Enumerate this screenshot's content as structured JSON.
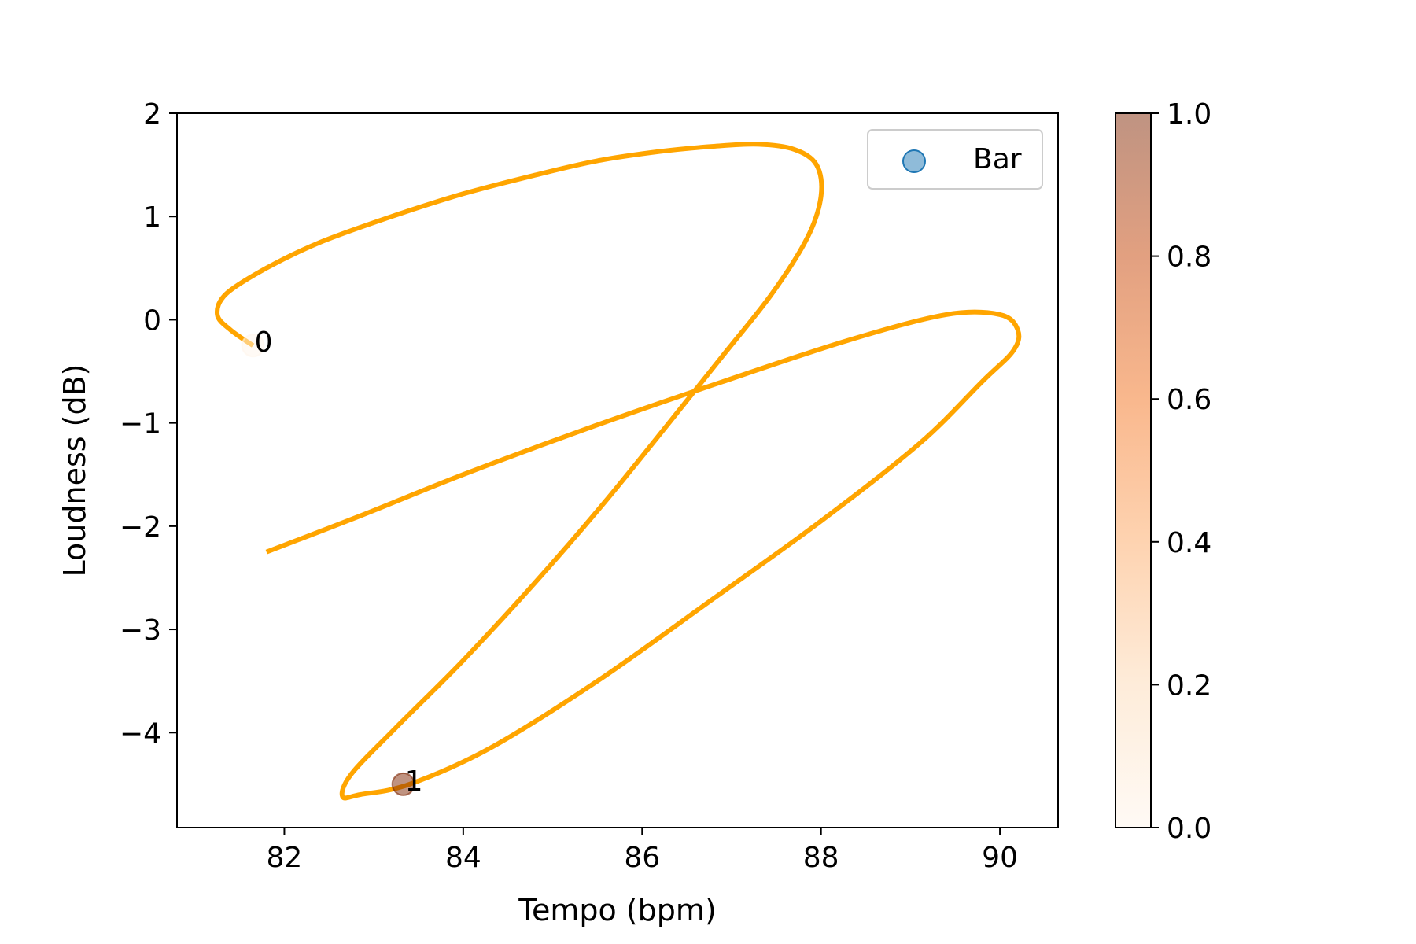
{
  "chart_data": {
    "type": "line",
    "title": "",
    "xlabel": "Tempo (bpm)",
    "ylabel": "Loudness (dB)",
    "xlim": [
      80.8,
      90.65
    ],
    "ylim": [
      -4.92,
      2.0
    ],
    "xticks": [
      82,
      84,
      86,
      88,
      90
    ],
    "xtick_labels": [
      "82",
      "84",
      "86",
      "88",
      "90"
    ],
    "yticks": [
      2,
      1,
      0,
      -1,
      -2,
      -3,
      -4
    ],
    "ytick_labels": [
      "2",
      "1",
      "0",
      "−1",
      "−2",
      "−3",
      "−4"
    ],
    "grid": false,
    "legend": {
      "location": "top-right",
      "entries": [
        "Bar"
      ]
    },
    "line_color": "#FFA500",
    "curve": {
      "name": "",
      "x": [
        81.65,
        81.4,
        81.25,
        81.35,
        81.8,
        82.4,
        83.2,
        84.0,
        84.8,
        85.5,
        86.2,
        86.8,
        87.3,
        87.7,
        87.95,
        88.0,
        87.85,
        87.45,
        86.9,
        86.3,
        85.55,
        84.8,
        84.0,
        83.25,
        82.75,
        82.65,
        82.85,
        83.4,
        84.3,
        85.5,
        86.8,
        88.0,
        89.1,
        89.8,
        90.15,
        90.2,
        90.0,
        89.4,
        88.3,
        86.9,
        85.4,
        84.0,
        82.85,
        81.8
      ],
      "y": [
        -0.25,
        -0.1,
        0.05,
        0.25,
        0.5,
        0.75,
        1.0,
        1.22,
        1.4,
        1.54,
        1.63,
        1.68,
        1.7,
        1.65,
        1.5,
        1.2,
        0.8,
        0.25,
        -0.35,
        -1.0,
        -1.8,
        -2.55,
        -3.3,
        -3.95,
        -4.4,
        -4.62,
        -4.6,
        -4.5,
        -4.15,
        -3.5,
        -2.7,
        -1.95,
        -1.2,
        -0.6,
        -0.3,
        -0.1,
        0.05,
        0.05,
        -0.2,
        -0.6,
        -1.05,
        -1.5,
        -1.9,
        -2.25
      ]
    },
    "points": {
      "series_name": "Bar",
      "x": [
        81.65,
        83.33
      ],
      "y": [
        -0.25,
        -4.5
      ],
      "values": [
        0.0,
        1.0
      ],
      "labels": [
        "0",
        "1"
      ]
    },
    "colorbar": {
      "min": 0.0,
      "max": 1.0,
      "ticks": [
        0.0,
        0.2,
        0.4,
        0.6,
        0.8,
        1.0
      ],
      "tick_labels": [
        "0.0",
        "0.2",
        "0.4",
        "0.6",
        "0.8",
        "1.0"
      ],
      "colormap": "Oranges",
      "colors": [
        "#fff5eb",
        "#fdd9b4",
        "#fda762",
        "#f3701b",
        "#c54102",
        "#7f2704"
      ],
      "alpha": 0.5
    },
    "legend_marker_color": "#1f77b4"
  }
}
